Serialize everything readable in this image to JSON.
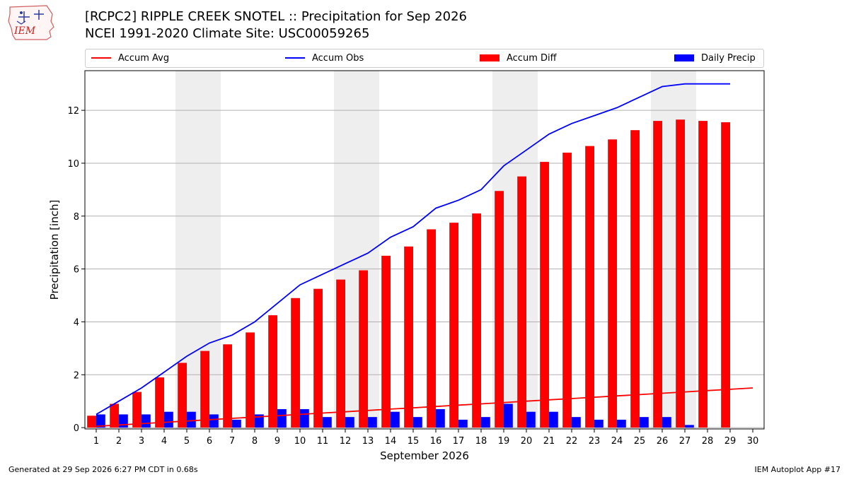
{
  "header": {
    "logo_text": "IEM",
    "title": "[RCPC2] RIPPLE CREEK SNOTEL :: Precipitation for Sep 2026",
    "subtitle": "NCEI 1991-2020 Climate Site: USC00059265"
  },
  "footer": {
    "generated": "Generated at 29 Sep 2026 6:27 PM CDT in 0.68s",
    "app": "IEM Autoplot App #17"
  },
  "colors": {
    "accum_avg": "#ff0000",
    "accum_obs": "#0000ff",
    "accum_diff": "#ff0000",
    "daily_precip": "#0000ff",
    "weekend_shade": "#eeeeee",
    "grid": "#b0b0b0"
  },
  "chart_data": {
    "type": "bar",
    "xlabel": "September 2026",
    "ylabel": "Precipitation [inch]",
    "xlim": [
      0.5,
      30.5
    ],
    "ylim": [
      -0.05,
      13.5
    ],
    "y_ticks": [
      0,
      2,
      4,
      6,
      8,
      10,
      12
    ],
    "grid": "horizontal",
    "legend": [
      "Accum Avg",
      "Accum Obs",
      "Accum Diff",
      "Daily Precip"
    ],
    "legend_placement": "top, above plot",
    "shaded_days": [
      [
        5,
        6
      ],
      [
        12,
        13
      ],
      [
        19,
        20
      ],
      [
        26,
        27
      ]
    ],
    "days": [
      1,
      2,
      3,
      4,
      5,
      6,
      7,
      8,
      9,
      10,
      11,
      12,
      13,
      14,
      15,
      16,
      17,
      18,
      19,
      20,
      21,
      22,
      23,
      24,
      25,
      26,
      27,
      28,
      29,
      30
    ],
    "series": [
      {
        "name": "Accum Avg",
        "kind": "line",
        "x": [
          1,
          2,
          3,
          4,
          5,
          6,
          7,
          8,
          9,
          10,
          11,
          12,
          13,
          14,
          15,
          16,
          17,
          18,
          19,
          20,
          21,
          22,
          23,
          24,
          25,
          26,
          27,
          28,
          29,
          30
        ],
        "values": [
          0.05,
          0.1,
          0.15,
          0.2,
          0.25,
          0.3,
          0.35,
          0.4,
          0.45,
          0.5,
          0.55,
          0.6,
          0.65,
          0.7,
          0.75,
          0.8,
          0.85,
          0.9,
          0.95,
          1.0,
          1.05,
          1.1,
          1.15,
          1.2,
          1.25,
          1.3,
          1.35,
          1.4,
          1.45,
          1.5
        ]
      },
      {
        "name": "Accum Obs",
        "kind": "line",
        "x": [
          1,
          2,
          3,
          4,
          5,
          6,
          7,
          8,
          9,
          10,
          11,
          12,
          13,
          14,
          15,
          16,
          17,
          18,
          19,
          20,
          21,
          22,
          23,
          24,
          25,
          26,
          27,
          28,
          29
        ],
        "values": [
          0.5,
          1.0,
          1.5,
          2.1,
          2.7,
          3.2,
          3.5,
          4.0,
          4.7,
          5.4,
          5.8,
          6.2,
          6.6,
          7.2,
          7.6,
          8.3,
          8.6,
          9.0,
          9.9,
          10.5,
          11.1,
          11.5,
          11.8,
          12.1,
          12.5,
          12.9,
          13.0,
          13.0,
          13.0
        ]
      },
      {
        "name": "Accum Diff",
        "kind": "bar",
        "x": [
          1,
          2,
          3,
          4,
          5,
          6,
          7,
          8,
          9,
          10,
          11,
          12,
          13,
          14,
          15,
          16,
          17,
          18,
          19,
          20,
          21,
          22,
          23,
          24,
          25,
          26,
          27,
          28,
          29
        ],
        "values": [
          0.45,
          0.9,
          1.35,
          1.9,
          2.45,
          2.9,
          3.15,
          3.6,
          4.25,
          4.9,
          5.25,
          5.6,
          5.95,
          6.5,
          6.85,
          7.5,
          7.75,
          8.1,
          8.95,
          9.5,
          10.05,
          10.4,
          10.65,
          10.9,
          11.25,
          11.6,
          11.65,
          11.6,
          11.55
        ]
      },
      {
        "name": "Daily Precip",
        "kind": "bar",
        "x": [
          1,
          2,
          3,
          4,
          5,
          6,
          7,
          8,
          9,
          10,
          11,
          12,
          13,
          14,
          15,
          16,
          17,
          18,
          19,
          20,
          21,
          22,
          23,
          24,
          25,
          26,
          27,
          28,
          29
        ],
        "values": [
          0.5,
          0.5,
          0.5,
          0.6,
          0.6,
          0.5,
          0.3,
          0.5,
          0.7,
          0.7,
          0.4,
          0.4,
          0.4,
          0.6,
          0.4,
          0.7,
          0.3,
          0.4,
          0.9,
          0.6,
          0.6,
          0.4,
          0.3,
          0.3,
          0.4,
          0.4,
          0.1,
          0.0,
          0.0
        ]
      }
    ]
  }
}
